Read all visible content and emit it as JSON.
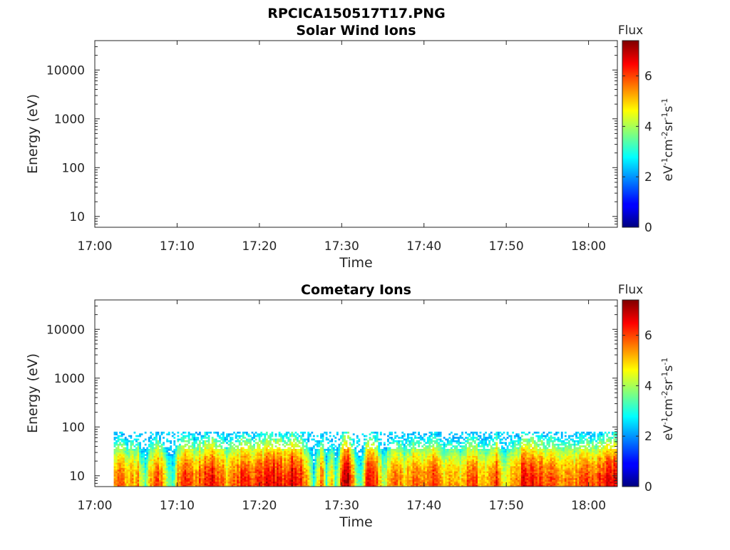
{
  "figure": {
    "title": "RPCICA150517T17.PNG"
  },
  "colorbar": {
    "label": "Flux",
    "units_main": "eV",
    "units_parts": [
      {
        "t": "eV",
        "sup": false
      },
      {
        "t": "-1",
        "sup": true
      },
      {
        "t": "cm",
        "sup": false
      },
      {
        "t": "-2",
        "sup": true
      },
      {
        "t": "sr",
        "sup": false
      },
      {
        "t": "-1",
        "sup": true
      },
      {
        "t": "s",
        "sup": false
      },
      {
        "t": "-1",
        "sup": true
      }
    ],
    "ticks": [
      "0",
      "2",
      "4",
      "6"
    ],
    "tick_values": [
      0,
      2,
      4,
      6
    ],
    "range": [
      0,
      7.4
    ],
    "colormap": "jet"
  },
  "chart_data": [
    {
      "type": "heatmap",
      "title": "Solar Wind Ions",
      "xlabel": "Time",
      "ylabel": "Energy (eV)",
      "x_ticks": [
        "17:00",
        "17:10",
        "17:20",
        "17:30",
        "17:40",
        "17:50",
        "18:00"
      ],
      "x_range_minutes": [
        0,
        63.5
      ],
      "y_ticks": [
        "10",
        "100",
        "1000",
        "10000"
      ],
      "y_scale": "log",
      "y_range": [
        6,
        40000
      ],
      "has_data": false
    },
    {
      "type": "heatmap",
      "title": "Cometary Ions",
      "xlabel": "Time",
      "ylabel": "Energy (eV)",
      "x_ticks": [
        "17:00",
        "17:10",
        "17:20",
        "17:30",
        "17:40",
        "17:50",
        "18:00"
      ],
      "x_range_minutes": [
        0,
        63.5
      ],
      "y_ticks": [
        "10",
        "100",
        "1000",
        "10000"
      ],
      "y_scale": "log",
      "y_range": [
        6,
        40000
      ],
      "has_data": true,
      "data_time_range_minutes": [
        2.3,
        63.5
      ],
      "data_energy_max": 80,
      "intensity_profile": [
        [
          2.3,
          5.2
        ],
        [
          3.0,
          5.8
        ],
        [
          4.0,
          5.0
        ],
        [
          5.0,
          5.5
        ],
        [
          6.0,
          3.8
        ],
        [
          7.0,
          5.5
        ],
        [
          7.5,
          6.3
        ],
        [
          8.0,
          5.6
        ],
        [
          8.7,
          3.5
        ],
        [
          9.5,
          3.2
        ],
        [
          10.0,
          5.6
        ],
        [
          11.0,
          6.2
        ],
        [
          12.0,
          5.5
        ],
        [
          13.0,
          6.0
        ],
        [
          14.0,
          6.5
        ],
        [
          15.0,
          5.8
        ],
        [
          16.0,
          5.2
        ],
        [
          17.0,
          5.8
        ],
        [
          18.0,
          6.2
        ],
        [
          19.0,
          5.6
        ],
        [
          20.0,
          6.0
        ],
        [
          21.0,
          6.8
        ],
        [
          22.0,
          6.4
        ],
        [
          23.0,
          6.0
        ],
        [
          24.0,
          6.9
        ],
        [
          25.0,
          6.2
        ],
        [
          26.0,
          4.8
        ],
        [
          26.5,
          3.0
        ],
        [
          27.0,
          4.5
        ],
        [
          27.5,
          6.2
        ],
        [
          28.0,
          3.0
        ],
        [
          28.7,
          5.5
        ],
        [
          29.2,
          3.0
        ],
        [
          30.0,
          6.8
        ],
        [
          30.5,
          7.1
        ],
        [
          31.0,
          6.4
        ],
        [
          31.5,
          4.2
        ],
        [
          32.2,
          3.5
        ],
        [
          33.0,
          6.2
        ],
        [
          33.7,
          6.9
        ],
        [
          34.2,
          5.8
        ],
        [
          35.0,
          3.8
        ],
        [
          35.7,
          5.3
        ],
        [
          36.5,
          6.0
        ],
        [
          37.5,
          5.0
        ],
        [
          38.5,
          5.8
        ],
        [
          39.5,
          5.2
        ],
        [
          40.5,
          5.6
        ],
        [
          41.5,
          6.3
        ],
        [
          42.5,
          5.0
        ],
        [
          43.5,
          5.6
        ],
        [
          44.5,
          4.8
        ],
        [
          45.3,
          5.8
        ],
        [
          46.0,
          6.2
        ],
        [
          47.0,
          5.0
        ],
        [
          48.0,
          5.6
        ],
        [
          48.8,
          6.3
        ],
        [
          49.5,
          4.5
        ],
        [
          50.5,
          5.3
        ],
        [
          51.5,
          6.0
        ],
        [
          52.5,
          6.7
        ],
        [
          53.5,
          6.2
        ],
        [
          54.5,
          5.8
        ],
        [
          55.5,
          6.3
        ],
        [
          56.5,
          5.6
        ],
        [
          57.5,
          6.0
        ],
        [
          58.5,
          5.5
        ],
        [
          59.5,
          6.3
        ],
        [
          60.5,
          5.8
        ],
        [
          61.5,
          6.2
        ],
        [
          62.5,
          6.8
        ],
        [
          63.5,
          6.2
        ]
      ]
    }
  ]
}
